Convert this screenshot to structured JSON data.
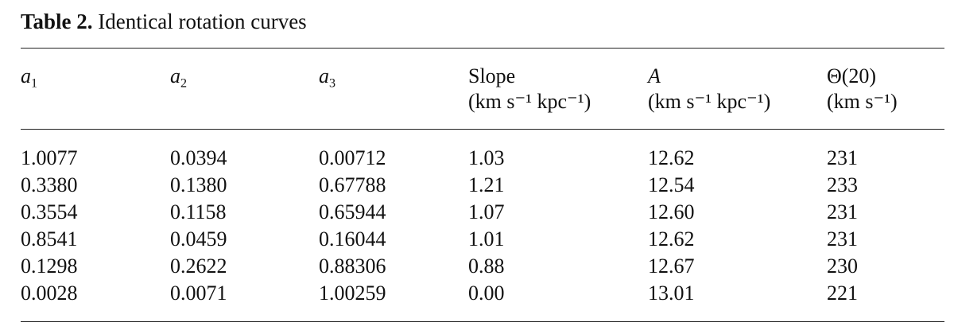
{
  "caption": {
    "label": "Table 2.",
    "title": "Identical rotation curves"
  },
  "headers": [
    {
      "base": "a",
      "sub": "1"
    },
    {
      "base": "a",
      "sub": "2"
    },
    {
      "base": "a",
      "sub": "3"
    },
    {
      "title": "Slope",
      "unit": "(km s⁻¹ kpc⁻¹)"
    },
    {
      "title": "A",
      "unit": "(km s⁻¹ kpc⁻¹)"
    },
    {
      "title": "Θ(20)",
      "unit": "(km s⁻¹)"
    }
  ],
  "rows": [
    [
      "1.0077",
      "0.0394",
      "0.00712",
      "1.03",
      "12.62",
      "231"
    ],
    [
      "0.3380",
      "0.1380",
      "0.67788",
      "1.21",
      "12.54",
      "233"
    ],
    [
      "0.3554",
      "0.1158",
      "0.65944",
      "1.07",
      "12.60",
      "231"
    ],
    [
      "0.8541",
      "0.0459",
      "0.16044",
      "1.01",
      "12.62",
      "231"
    ],
    [
      "0.1298",
      "0.2622",
      "0.88306",
      "0.88",
      "12.67",
      "230"
    ],
    [
      "0.0028",
      "0.0071",
      "1.00259",
      "0.00",
      "13.01",
      "221"
    ]
  ]
}
